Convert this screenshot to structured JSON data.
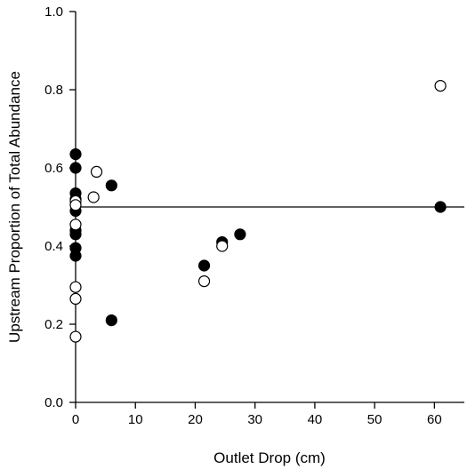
{
  "chart_data": {
    "type": "scatter",
    "xlabel": "Outlet Drop (cm)",
    "ylabel": "Upstream Proportion of Total Abundance",
    "xlim": [
      0,
      65
    ],
    "ylim": [
      0,
      1.0
    ],
    "x_ticks": [
      "0",
      "10",
      "20",
      "30",
      "40",
      "50",
      "60"
    ],
    "y_ticks": [
      "0.0",
      "0.2",
      "0.4",
      "0.6",
      "0.8",
      "1.0"
    ],
    "reference_line": {
      "y": 0.5
    },
    "grid": false,
    "legend": "none",
    "series": [
      {
        "marker": "filled-circle",
        "color": "#000000",
        "points": [
          {
            "x": 0,
            "y": 0.635
          },
          {
            "x": 0,
            "y": 0.6
          },
          {
            "x": 0,
            "y": 0.535
          },
          {
            "x": 0,
            "y": 0.52
          },
          {
            "x": 0,
            "y": 0.49
          },
          {
            "x": 0,
            "y": 0.44
          },
          {
            "x": 0,
            "y": 0.43
          },
          {
            "x": 0,
            "y": 0.395
          },
          {
            "x": 0,
            "y": 0.375
          },
          {
            "x": 6,
            "y": 0.555
          },
          {
            "x": 6,
            "y": 0.21
          },
          {
            "x": 21.5,
            "y": 0.35
          },
          {
            "x": 24.5,
            "y": 0.41
          },
          {
            "x": 27.5,
            "y": 0.43
          },
          {
            "x": 61,
            "y": 0.5
          }
        ]
      },
      {
        "marker": "open-circle",
        "color": "#000000",
        "points": [
          {
            "x": 0,
            "y": 0.515
          },
          {
            "x": 0,
            "y": 0.505
          },
          {
            "x": 0,
            "y": 0.455
          },
          {
            "x": 0,
            "y": 0.295
          },
          {
            "x": 0,
            "y": 0.265
          },
          {
            "x": 0,
            "y": 0.168
          },
          {
            "x": 3.5,
            "y": 0.59
          },
          {
            "x": 3,
            "y": 0.525
          },
          {
            "x": 21.5,
            "y": 0.31
          },
          {
            "x": 24.5,
            "y": 0.4
          },
          {
            "x": 61,
            "y": 0.81
          }
        ]
      }
    ]
  }
}
